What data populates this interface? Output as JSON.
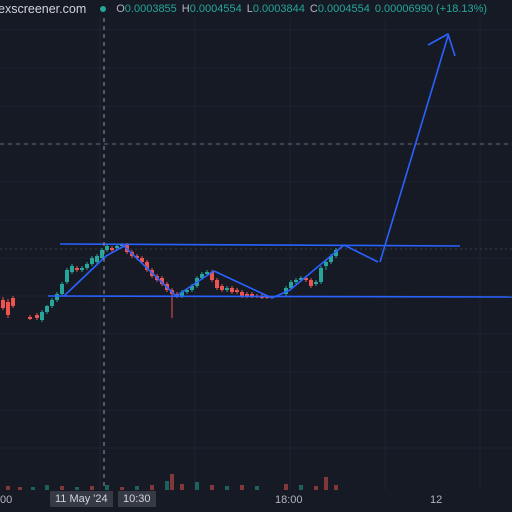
{
  "header": {
    "site": "exscreener.com",
    "ohlc": [
      {
        "k": "O",
        "v": "0.0003855"
      },
      {
        "k": "H",
        "v": "0.0004554"
      },
      {
        "k": "L",
        "v": "0.0003844"
      },
      {
        "k": "C",
        "v": "0.0004554"
      }
    ],
    "change": "0.00006990 (+18.13%)"
  },
  "xaxis": {
    "left_label": "00",
    "date_label": "11 May '24",
    "time_label": "10:30",
    "mid_label": "18:00",
    "right_label": "12"
  },
  "colors": {
    "background": "#161a25",
    "up": "#26a69a",
    "down": "#ef5350",
    "drawing": "#2962ff",
    "grid": "#1f2331"
  },
  "chart_data": {
    "type": "candlestick",
    "x_reference": "11 May '24 10:30",
    "annotations": [
      "support-line",
      "resistance-line",
      "projected-breakout-arrow"
    ]
  }
}
